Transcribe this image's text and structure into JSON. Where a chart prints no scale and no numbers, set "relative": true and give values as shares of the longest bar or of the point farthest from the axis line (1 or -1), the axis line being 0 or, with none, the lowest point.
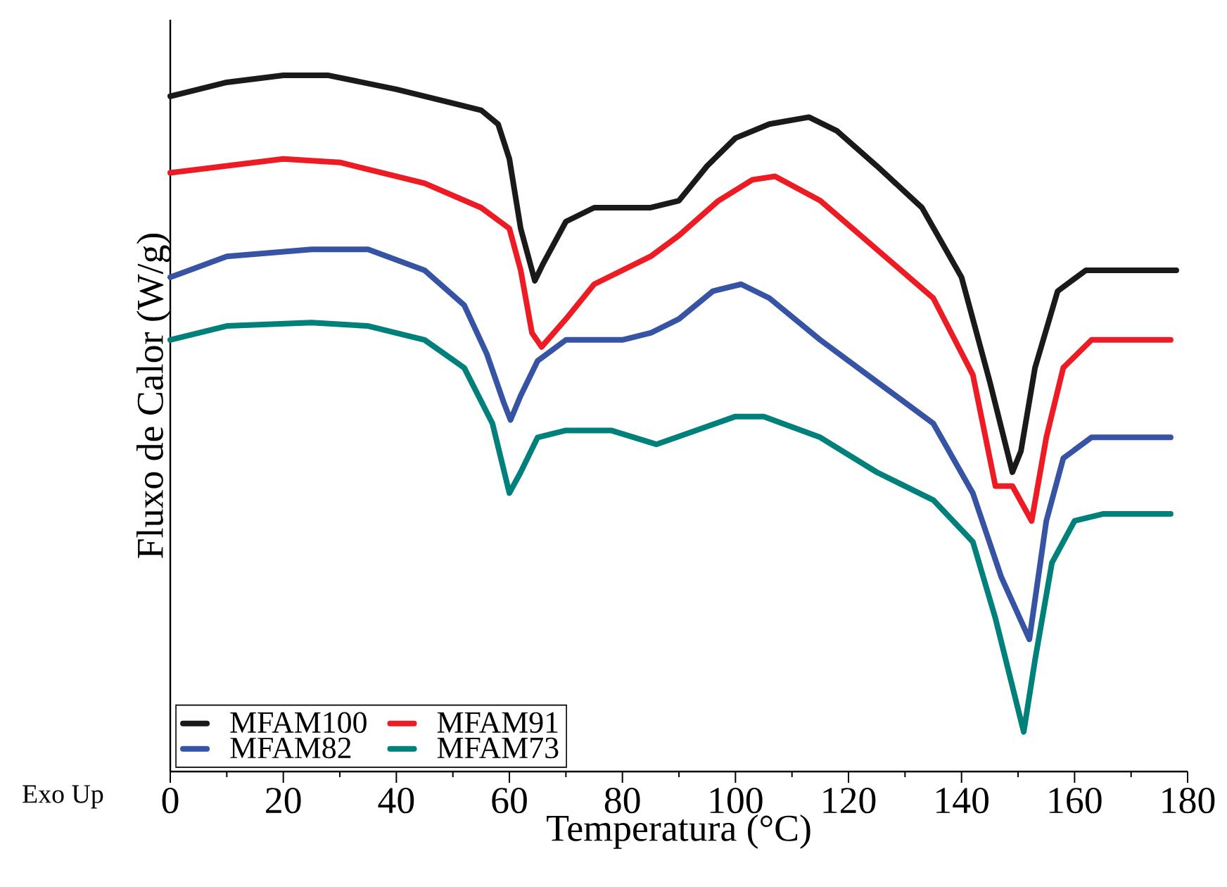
{
  "chart_data": {
    "type": "line",
    "relative": true,
    "xlabel": "Temperatura (°C)",
    "ylabel": "Fluxo de Calor (W/g)",
    "annotations": [
      "Exo Up"
    ],
    "xlim": [
      0,
      180
    ],
    "xticks": [
      0,
      20,
      40,
      60,
      80,
      100,
      120,
      140,
      160,
      180
    ],
    "legend": "bottom left",
    "marker": "none",
    "line_style": "solid",
    "grid": false,
    "x": [
      0,
      10,
      20,
      28,
      40,
      50,
      55,
      58,
      60,
      62,
      64.5,
      66,
      70,
      75,
      85,
      90,
      95,
      100,
      106,
      113,
      118,
      125,
      133,
      140,
      145,
      149,
      150.5,
      153,
      157,
      162,
      170,
      178
    ],
    "series": [
      {
        "name": "MFAM100",
        "color": "#1a1a1a",
        "values": [
          0.97,
          0.99,
          1.0,
          1.0,
          0.98,
          0.96,
          0.95,
          0.93,
          0.88,
          0.78,
          0.705,
          0.73,
          0.79,
          0.81,
          0.81,
          0.82,
          0.87,
          0.91,
          0.93,
          0.94,
          0.92,
          0.87,
          0.81,
          0.71,
          0.56,
          0.43,
          0.46,
          0.58,
          0.69,
          0.72,
          0.72,
          0.72
        ]
      },
      {
        "name": "MFAM91",
        "color": "#ed1c24",
        "x": [
          0,
          20,
          30,
          45,
          55,
          60,
          62,
          64,
          65.7,
          70,
          75,
          85,
          90,
          97,
          103,
          107,
          115,
          125,
          135,
          142,
          146,
          149,
          152.4,
          155,
          158,
          163,
          170,
          177
        ],
        "values": [
          0.86,
          0.88,
          0.875,
          0.845,
          0.81,
          0.78,
          0.72,
          0.63,
          0.61,
          0.65,
          0.7,
          0.74,
          0.77,
          0.82,
          0.85,
          0.855,
          0.82,
          0.75,
          0.68,
          0.57,
          0.41,
          0.41,
          0.36,
          0.48,
          0.58,
          0.62,
          0.62,
          0.62
        ]
      },
      {
        "name": "MFAM82",
        "color": "#3653a4",
        "x": [
          0,
          10,
          25,
          35,
          45,
          52,
          56,
          59,
          60.2,
          62,
          65,
          70,
          80,
          85,
          90,
          96,
          101,
          106,
          115,
          125,
          135,
          142,
          147,
          152,
          155,
          158,
          163,
          170,
          177
        ],
        "values": [
          0.71,
          0.74,
          0.75,
          0.75,
          0.72,
          0.67,
          0.6,
          0.53,
          0.505,
          0.54,
          0.59,
          0.62,
          0.62,
          0.63,
          0.65,
          0.69,
          0.7,
          0.68,
          0.62,
          0.56,
          0.5,
          0.4,
          0.28,
          0.19,
          0.36,
          0.45,
          0.48,
          0.48,
          0.48
        ]
      },
      {
        "name": "MFAM73",
        "color": "#00807a",
        "x": [
          0,
          10,
          25,
          35,
          45,
          52,
          57,
          60,
          62,
          65,
          70,
          78,
          86,
          93,
          100,
          105,
          115,
          125,
          135,
          142,
          146,
          151,
          153,
          156,
          160,
          165,
          177
        ],
        "values": [
          0.62,
          0.64,
          0.645,
          0.64,
          0.62,
          0.58,
          0.5,
          0.4,
          0.43,
          0.48,
          0.49,
          0.49,
          0.47,
          0.49,
          0.51,
          0.51,
          0.48,
          0.43,
          0.39,
          0.33,
          0.22,
          0.057,
          0.16,
          0.3,
          0.36,
          0.37,
          0.37
        ]
      }
    ]
  }
}
